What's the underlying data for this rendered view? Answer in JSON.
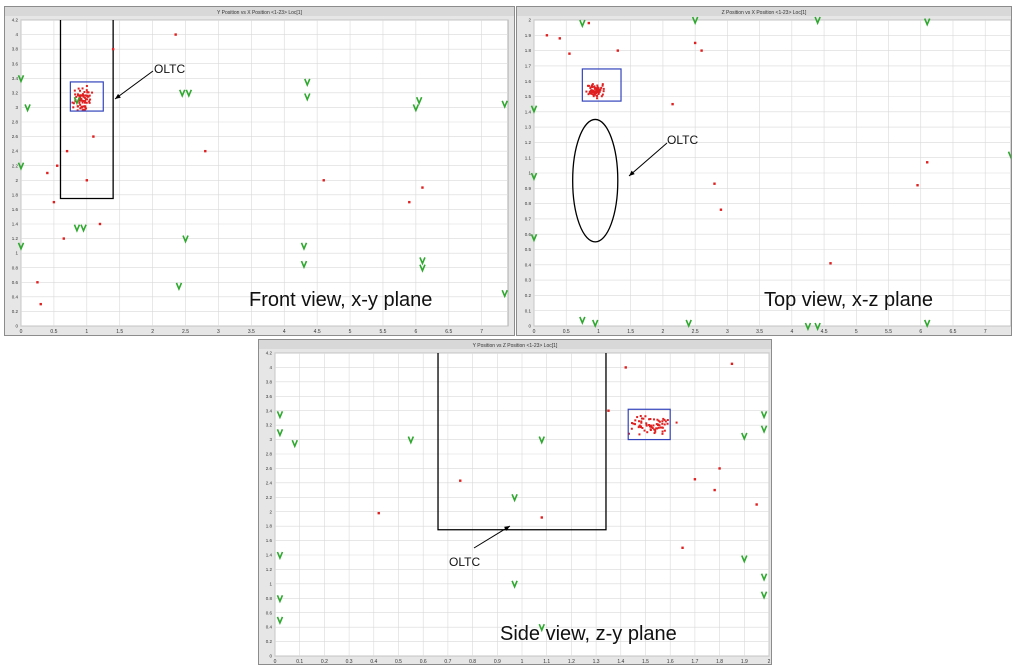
{
  "chart_data": [
    {
      "type": "scatter",
      "title": "Y Position vs X Position <1-23> Loc[1]",
      "caption": "Front view, x-y plane",
      "annotation": "OLTC",
      "xlim": [
        0,
        7.4
      ],
      "ylim": [
        0,
        4.2
      ],
      "xticks": [
        0,
        0.5,
        1,
        1.5,
        2,
        2.5,
        3,
        3.5,
        4,
        4.5,
        5,
        5.5,
        6,
        6.5,
        7
      ],
      "yticks": [
        0,
        0.2,
        0.4,
        0.6,
        0.8,
        1,
        1.2,
        1.4,
        1.6,
        1.8,
        2,
        2.2,
        2.4,
        2.6,
        2.8,
        3,
        3.2,
        3.4,
        3.6,
        3.8,
        4,
        4.2
      ],
      "grid": true,
      "colors": {
        "events": "#e02020",
        "sensors": "#2fa82f",
        "box": "#3344bb",
        "outline": "#000000"
      },
      "cluster": {
        "center": [
          0.95,
          3.12
        ],
        "spread": [
          0.22,
          0.22
        ],
        "count": 70
      },
      "events": [
        [
          0.3,
          0.3
        ],
        [
          0.25,
          0.6
        ],
        [
          0.65,
          1.2
        ],
        [
          0.5,
          1.7
        ],
        [
          0.55,
          2.2
        ],
        [
          0.4,
          2.1
        ],
        [
          0.7,
          2.4
        ],
        [
          1.1,
          2.6
        ],
        [
          1.4,
          3.8
        ],
        [
          2.35,
          4
        ],
        [
          2.8,
          2.4
        ],
        [
          4.6,
          2
        ],
        [
          6.1,
          1.9
        ],
        [
          5.9,
          1.7
        ],
        [
          1.2,
          1.4
        ],
        [
          1,
          2
        ]
      ],
      "sensors": [
        [
          0,
          3.4
        ],
        [
          0.1,
          3
        ],
        [
          0,
          2.2
        ],
        [
          0,
          1.1
        ],
        [
          0.85,
          1.35
        ],
        [
          0.95,
          1.35
        ],
        [
          0.85,
          3.1
        ],
        [
          2.45,
          3.2
        ],
        [
          2.55,
          3.2
        ],
        [
          2.5,
          1.2
        ],
        [
          4.35,
          3.35
        ],
        [
          4.35,
          3.15
        ],
        [
          4.3,
          1.1
        ],
        [
          4.3,
          0.85
        ],
        [
          6,
          3
        ],
        [
          6.05,
          3.1
        ],
        [
          6.1,
          0.9
        ],
        [
          6.1,
          0.8
        ],
        [
          2.4,
          0.55
        ],
        [
          7.35,
          3.05
        ],
        [
          7.35,
          0.45
        ]
      ],
      "blue_box": {
        "x": [
          0.75,
          1.25
        ],
        "y": [
          2.95,
          3.35
        ]
      },
      "outline": {
        "x": [
          0.6,
          1.4
        ],
        "y": [
          1.75,
          4.2
        ]
      }
    },
    {
      "type": "scatter",
      "title": "Z Position vs X Position <1-23> Loc[1]",
      "caption": "Top view, x-z plane",
      "annotation": "OLTC",
      "xlim": [
        0,
        7.4
      ],
      "ylim": [
        0,
        2
      ],
      "xticks": [
        0,
        0.5,
        1,
        1.5,
        2,
        2.5,
        3,
        3.5,
        4,
        4.5,
        5,
        5.5,
        6,
        6.5,
        7
      ],
      "yticks": [
        0,
        0.1,
        0.2,
        0.3,
        0.4,
        0.5,
        0.6,
        0.7,
        0.8,
        0.9,
        1,
        1.1,
        1.2,
        1.3,
        1.4,
        1.5,
        1.6,
        1.7,
        1.8,
        1.9,
        2
      ],
      "grid": true,
      "colors": {
        "events": "#e02020",
        "sensors": "#2fa82f",
        "box": "#3344bb",
        "outline": "#000000"
      },
      "cluster": {
        "center": [
          0.95,
          1.54
        ],
        "spread": [
          0.22,
          0.07
        ],
        "count": 70
      },
      "events": [
        [
          0.2,
          1.9
        ],
        [
          0.4,
          1.88
        ],
        [
          0.55,
          1.78
        ],
        [
          0.85,
          1.98
        ],
        [
          1.3,
          1.8
        ],
        [
          2.5,
          1.85
        ],
        [
          2.6,
          1.8
        ],
        [
          2.15,
          1.45
        ],
        [
          2.8,
          0.93
        ],
        [
          2.9,
          0.76
        ],
        [
          4.6,
          0.41
        ],
        [
          6.1,
          1.07
        ],
        [
          5.95,
          0.92
        ]
      ],
      "sensors": [
        [
          0.75,
          1.98
        ],
        [
          0,
          1.42
        ],
        [
          0,
          0.98
        ],
        [
          0,
          0.58
        ],
        [
          0.75,
          0.04
        ],
        [
          0.95,
          0.02
        ],
        [
          2.4,
          0.02
        ],
        [
          2.5,
          2
        ],
        [
          4.25,
          0
        ],
        [
          4.4,
          0
        ],
        [
          4.4,
          2
        ],
        [
          6.1,
          0.02
        ],
        [
          6.1,
          1.99
        ],
        [
          7.4,
          1.12
        ]
      ],
      "blue_box": {
        "x": [
          0.75,
          1.35
        ],
        "y": [
          1.47,
          1.68
        ]
      },
      "ellipse": {
        "center": [
          0.95,
          0.95
        ],
        "radii": [
          0.35,
          0.4
        ]
      }
    },
    {
      "type": "scatter",
      "title": "Y Position vs Z Position <1-23> Loc[1]",
      "caption": "Side view, z-y plane",
      "annotation": "OLTC",
      "xlim": [
        0,
        2
      ],
      "ylim": [
        0,
        4.2
      ],
      "xticks": [
        0,
        0.1,
        0.2,
        0.3,
        0.4,
        0.5,
        0.6,
        0.7,
        0.8,
        0.9,
        1,
        1.1,
        1.2,
        1.3,
        1.4,
        1.5,
        1.6,
        1.7,
        1.8,
        1.9,
        2
      ],
      "yticks": [
        0,
        0.2,
        0.4,
        0.6,
        0.8,
        1,
        1.2,
        1.4,
        1.6,
        1.8,
        2,
        2.2,
        2.4,
        2.6,
        2.8,
        3,
        3.2,
        3.4,
        3.6,
        3.8,
        4,
        4.2
      ],
      "grid": true,
      "colors": {
        "events": "#e02020",
        "sensors": "#2fa82f",
        "box": "#3344bb",
        "outline": "#000000"
      },
      "cluster": {
        "center": [
          1.52,
          3.2
        ],
        "spread": [
          0.12,
          0.2
        ],
        "count": 70
      },
      "events": [
        [
          0.42,
          1.98
        ],
        [
          0.75,
          2.43
        ],
        [
          1.08,
          1.92
        ],
        [
          1.35,
          3.4
        ],
        [
          1.42,
          4.0
        ],
        [
          1.65,
          1.5
        ],
        [
          1.7,
          2.45
        ],
        [
          1.78,
          2.3
        ],
        [
          1.8,
          2.6
        ],
        [
          1.85,
          4.05
        ],
        [
          1.95,
          2.1
        ]
      ],
      "sensors": [
        [
          0.02,
          3.35
        ],
        [
          0.02,
          3.1
        ],
        [
          0.08,
          2.95
        ],
        [
          0.02,
          1.4
        ],
        [
          0.02,
          0.8
        ],
        [
          0.02,
          0.5
        ],
        [
          0.55,
          3
        ],
        [
          0.97,
          2.2
        ],
        [
          0.97,
          1
        ],
        [
          1.08,
          3
        ],
        [
          1.08,
          0.4
        ],
        [
          1.9,
          3.05
        ],
        [
          1.9,
          1.35
        ],
        [
          1.98,
          3.35
        ],
        [
          1.98,
          3.15
        ],
        [
          1.98,
          1.1
        ],
        [
          1.98,
          0.85
        ]
      ],
      "blue_box": {
        "x": [
          1.43,
          1.6
        ],
        "y": [
          3.0,
          3.42
        ]
      },
      "outline": {
        "x": [
          0.66,
          1.34
        ],
        "y": [
          1.75,
          4.2
        ]
      }
    }
  ]
}
